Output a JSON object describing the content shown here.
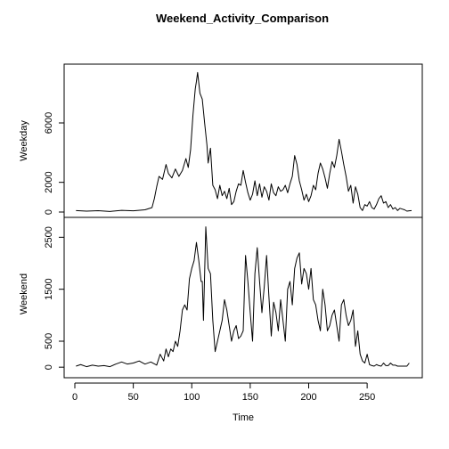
{
  "chart_data": {
    "type": "line",
    "title": "Weekend_Activity_Comparison",
    "xlabel": "Time",
    "xlim": [
      0,
      288
    ],
    "xticks": [
      0,
      50,
      100,
      150,
      200,
      250
    ],
    "grid": false,
    "panels": [
      {
        "ylabel": "Weekday",
        "ylim": [
          0,
          9600
        ],
        "yticks": [
          0,
          2000,
          6000
        ],
        "x": [
          1,
          10,
          20,
          30,
          40,
          50,
          60,
          66,
          68,
          70,
          72,
          75,
          78,
          80,
          83,
          86,
          89,
          92,
          95,
          97,
          99,
          101,
          103,
          104,
          105,
          107,
          109,
          111,
          113,
          114,
          116,
          118,
          120,
          122,
          124,
          126,
          128,
          130,
          132,
          134,
          136,
          138,
          140,
          142,
          144,
          146,
          148,
          150,
          152,
          154,
          156,
          158,
          160,
          162,
          164,
          166,
          168,
          170,
          172,
          174,
          176,
          178,
          180,
          182,
          184,
          186,
          188,
          190,
          192,
          194,
          196,
          198,
          200,
          202,
          204,
          206,
          208,
          210,
          212,
          214,
          216,
          218,
          220,
          222,
          224,
          226,
          228,
          230,
          232,
          234,
          236,
          238,
          240,
          242,
          244,
          246,
          248,
          250,
          252,
          254,
          256,
          258,
          260,
          262,
          264,
          266,
          268,
          270,
          272,
          274,
          276,
          278,
          280,
          282,
          284,
          286,
          288
        ],
        "y": [
          100,
          60,
          90,
          40,
          110,
          80,
          150,
          300,
          900,
          1700,
          2400,
          2200,
          3200,
          2600,
          2300,
          2900,
          2400,
          2800,
          3600,
          3000,
          4200,
          6500,
          8300,
          8800,
          9400,
          8000,
          7600,
          6000,
          4500,
          3300,
          4300,
          1800,
          1500,
          900,
          1800,
          1100,
          1400,
          900,
          1600,
          500,
          700,
          1400,
          1900,
          1800,
          2800,
          2000,
          1300,
          800,
          1200,
          2100,
          1100,
          1900,
          1000,
          1700,
          1400,
          800,
          1900,
          1300,
          1100,
          1700,
          1400,
          1500,
          1800,
          1300,
          1900,
          2400,
          3800,
          3200,
          2100,
          1500,
          800,
          1200,
          700,
          1100,
          1800,
          1500,
          2600,
          3300,
          2900,
          2300,
          1600,
          2600,
          3400,
          3000,
          3800,
          4900,
          4100,
          3200,
          2400,
          1400,
          1800,
          600,
          1700,
          1200,
          300,
          100,
          500,
          400,
          700,
          300,
          200,
          500,
          900,
          1100,
          600,
          700,
          300,
          500,
          200,
          300,
          100,
          250,
          200,
          150,
          60,
          80,
          100
        ]
      },
      {
        "ylabel": "Weekend",
        "ylim": [
          -100,
          2780
        ],
        "yticks": [
          0,
          500,
          1500,
          2500
        ],
        "x": [
          1,
          5,
          10,
          15,
          20,
          25,
          30,
          35,
          40,
          45,
          50,
          55,
          60,
          65,
          70,
          73,
          76,
          78,
          80,
          82,
          84,
          86,
          88,
          90,
          92,
          94,
          96,
          98,
          100,
          102,
          104,
          106,
          108,
          109,
          110,
          112,
          113,
          114,
          116,
          118,
          120,
          122,
          124,
          126,
          128,
          130,
          132,
          134,
          136,
          138,
          140,
          142,
          144,
          146,
          148,
          150,
          152,
          154,
          156,
          158,
          160,
          162,
          164,
          166,
          168,
          170,
          172,
          174,
          176,
          178,
          180,
          182,
          184,
          186,
          188,
          190,
          192,
          194,
          196,
          198,
          200,
          202,
          204,
          206,
          208,
          210,
          212,
          214,
          216,
          218,
          220,
          222,
          224,
          226,
          228,
          230,
          232,
          234,
          236,
          238,
          240,
          242,
          244,
          246,
          248,
          250,
          252,
          254,
          256,
          258,
          260,
          262,
          264,
          266,
          268,
          270,
          272,
          274,
          276,
          278,
          280,
          282,
          284,
          286
        ],
        "y": [
          20,
          50,
          10,
          40,
          20,
          30,
          10,
          60,
          100,
          60,
          80,
          120,
          60,
          100,
          40,
          250,
          120,
          350,
          200,
          350,
          300,
          500,
          400,
          700,
          1100,
          1200,
          1100,
          1700,
          1900,
          2050,
          2400,
          2050,
          1650,
          1650,
          900,
          2700,
          2300,
          1900,
          1800,
          900,
          300,
          500,
          700,
          900,
          1300,
          1100,
          800,
          500,
          700,
          800,
          550,
          600,
          700,
          2150,
          1650,
          1050,
          500,
          1800,
          2300,
          1650,
          1050,
          1550,
          2150,
          1350,
          600,
          1250,
          1050,
          700,
          1300,
          900,
          500,
          1500,
          1650,
          1200,
          1900,
          2100,
          2200,
          1600,
          1900,
          1800,
          1500,
          1900,
          1300,
          1200,
          900,
          700,
          1500,
          1200,
          700,
          800,
          1000,
          1100,
          800,
          500,
          1200,
          1300,
          1000,
          800,
          900,
          1100,
          400,
          700,
          250,
          120,
          80,
          250,
          50,
          30,
          20,
          50,
          30,
          20,
          80,
          30,
          30,
          80,
          40,
          40,
          20,
          20,
          20,
          20,
          20,
          80
        ]
      }
    ]
  }
}
